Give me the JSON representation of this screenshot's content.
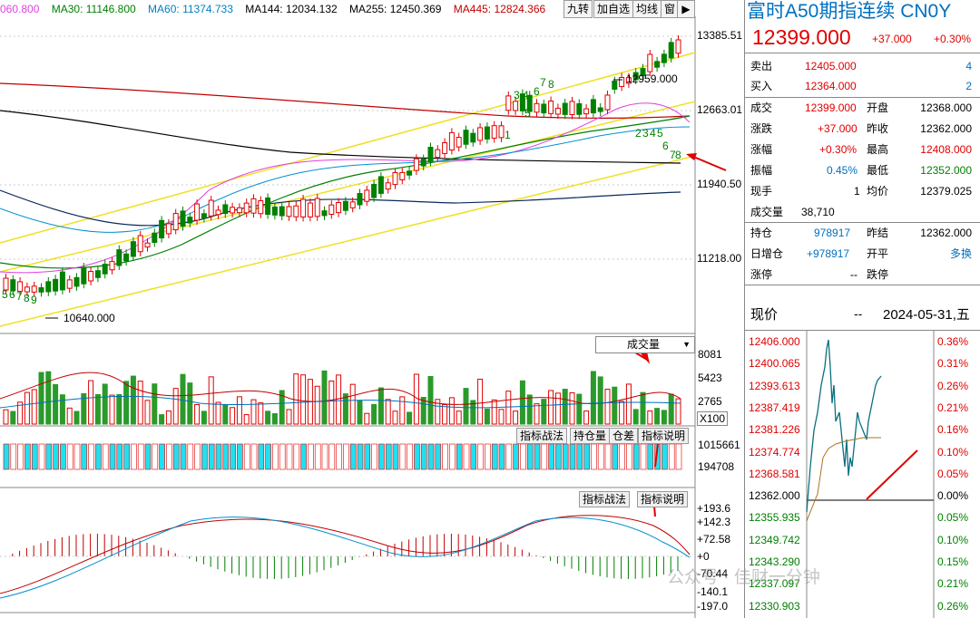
{
  "ma_line": [
    {
      "label": "060.800",
      "color": "#e040e0"
    },
    {
      "label": "MA30: 11146.800",
      "color": "#008000"
    },
    {
      "label": "MA60: 11374.733",
      "color": "#0080c0"
    },
    {
      "label": "MA144: 12034.132",
      "color": "#000000"
    },
    {
      "label": "MA255: 12450.369",
      "color": "#000000"
    },
    {
      "label": "MA445: 12824.366",
      "color": "#c00000"
    }
  ],
  "toolbar": {
    "b1": "九转",
    "b2": "加自选",
    "b3": "均线",
    "b4": "窗"
  },
  "price_axis": [
    "13385.51",
    "12663.01",
    "11940.50",
    "11218.00"
  ],
  "annotations": {
    "high": "12959.000",
    "low": "10640.000"
  },
  "td_counts": {
    "a": "3",
    "b": "4",
    "c": "6",
    "d": "7",
    "e": "8",
    "f": "1",
    "g": "5",
    "h": "2",
    "i": "3",
    "j": "4",
    "k": "5",
    "l": "6",
    "m": "7",
    "n": "8",
    "o": "5",
    "p": "6",
    "q": "7",
    "r": "8",
    "s": "9"
  },
  "volume": {
    "label": "成交量",
    "axis": [
      "8081",
      "5423",
      "2765",
      "X100"
    ]
  },
  "oi": {
    "axis": [
      "1015661",
      "194708"
    ],
    "tabs": [
      "指标战法",
      "持仓量",
      "仓差",
      "指标说明"
    ]
  },
  "macd": {
    "tabs": [
      "指标战法",
      "指标说明"
    ],
    "axis": [
      "+193.6",
      "+142.3",
      "+72.58",
      "+0",
      "-70.44",
      "-140.1",
      "-197.0"
    ]
  },
  "quote": {
    "title": "富时A50期指连续 CN0Y",
    "price": "12399.000",
    "change": "+37.000",
    "pct": "+0.30%",
    "sell": {
      "label": "卖出",
      "price": "12405.000",
      "vol": "4"
    },
    "buy": {
      "label": "买入",
      "price": "12364.000",
      "vol": "2"
    },
    "rows": [
      {
        "l1": "成交",
        "v1": "12399.000",
        "l2": "开盘",
        "v2": "12368.000"
      },
      {
        "l1": "涨跌",
        "v1": "+37.000",
        "l2": "昨收",
        "v2": "12362.000"
      },
      {
        "l1": "涨幅",
        "v1": "+0.30%",
        "l2": "最高",
        "v2": "12408.000"
      },
      {
        "l1": "振幅",
        "v1": "0.45%",
        "l2": "最低",
        "v2": "12352.000"
      },
      {
        "l1": "现手",
        "v1": "1",
        "l2": "均价",
        "v2": "12379.025"
      },
      {
        "l1": "成交量",
        "v1": "38,710",
        "l2": "",
        "v2": ""
      },
      {
        "l1": "持仓",
        "v1": "978917",
        "l2": "昨结",
        "v2": "12362.000"
      },
      {
        "l1": "日增仓",
        "v1": "+978917",
        "l2": "开平",
        "v2": "多换"
      },
      {
        "l1": "涨停",
        "v1": "--",
        "l2": "跌停",
        "v2": "--"
      }
    ],
    "now_label": "现价",
    "now_value": "--",
    "date": "2024-05-31,五"
  },
  "intraday": {
    "left_axis": [
      "12406.000",
      "12400.065",
      "12393.613",
      "12387.419",
      "12381.226",
      "12374.774",
      "12368.581",
      "12362.000",
      "12355.935",
      "12349.742",
      "12343.290",
      "12337.097",
      "12330.903"
    ],
    "right_axis": [
      "0.36%",
      "0.31%",
      "0.26%",
      "0.21%",
      "0.16%",
      "0.10%",
      "0.05%",
      "0.00%",
      "0.05%",
      "0.10%",
      "0.15%",
      "0.21%",
      "0.26%"
    ]
  },
  "watermark": "公众号 · 佳财一分钟",
  "colors": {
    "up": "#e00000",
    "down": "#008000",
    "bg": "#ffffff",
    "yellow": "#f0e020",
    "cyan": "#00e0f0"
  }
}
